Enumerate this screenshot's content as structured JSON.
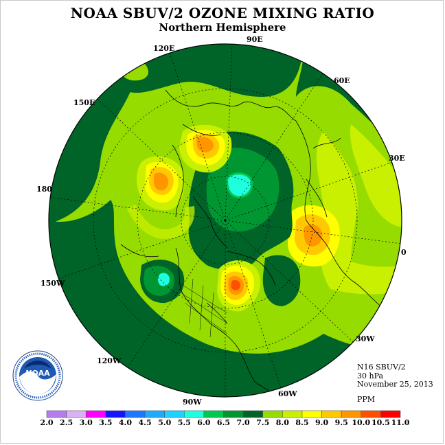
{
  "header": {
    "title": "NOAA SBUV/2 OZONE MIXING RATIO",
    "subtitle": "Northern Hemisphere"
  },
  "longitude_labels": {
    "e90": "90E",
    "e120": "120E",
    "e60": "60E",
    "e150": "150E",
    "e30": "30E",
    "d180": "180",
    "d0": "0",
    "w150": "150W",
    "w30": "30W",
    "w120": "120W",
    "w60": "60W",
    "w90": "90W"
  },
  "info": {
    "instrument": "N16 SBUV/2",
    "level": "30 hPa",
    "date": "November 25, 2013",
    "units": "PPM"
  },
  "logo": {
    "text": "NOAA",
    "ring_text": "NATIONAL OCEANIC AND ATMOSPHERIC ADMINISTRATION · U.S. DEPARTMENT OF COMMERCE"
  },
  "legend": {
    "ticks": [
      "2.0",
      "2.5",
      "3.0",
      "3.5",
      "4.0",
      "4.5",
      "5.0",
      "5.5",
      "6.0",
      "6.5",
      "7.0",
      "7.5",
      "8.0",
      "8.5",
      "9.0",
      "9.5",
      "10.0",
      "10.5",
      "11.0"
    ],
    "colors": [
      "#b57cf0",
      "#dcb0f4",
      "#ff00ff",
      "#1414ff",
      "#1e78ff",
      "#1eaaff",
      "#1ed2ff",
      "#1effe0",
      "#00c850",
      "#009632",
      "#006428",
      "#96dc00",
      "#c8f000",
      "#ffff00",
      "#ffc800",
      "#ff9600",
      "#ff5000",
      "#ff0000",
      "#8b5a32"
    ]
  }
}
